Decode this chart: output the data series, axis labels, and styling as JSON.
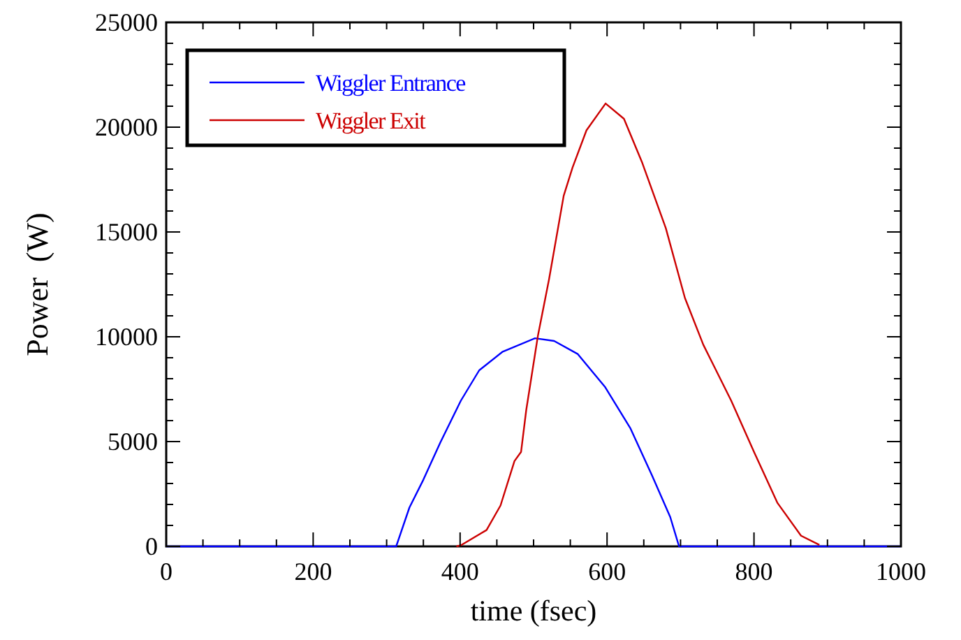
{
  "chart_data": {
    "type": "line",
    "xlabel": "time (fsec)",
    "ylabel": "Power  (W)",
    "xlim": [
      0,
      1000
    ],
    "ylim": [
      0,
      25000
    ],
    "xticks": [
      0,
      {
        "value": 50,
        "label": null
      },
      {
        "value": 100,
        "label": null
      },
      {
        "value": 150,
        "label": null
      },
      200,
      {
        "value": 250,
        "label": null
      },
      {
        "value": 300,
        "label": null
      },
      {
        "value": 350,
        "label": null
      },
      400,
      {
        "value": 450,
        "label": null
      },
      {
        "value": 500,
        "label": null
      },
      {
        "value": 550,
        "label": null
      },
      600,
      {
        "value": 650,
        "label": null
      },
      {
        "value": 700,
        "label": null
      },
      {
        "value": 750,
        "label": null
      },
      800,
      {
        "value": 850,
        "label": null
      },
      {
        "value": 900,
        "label": null
      },
      {
        "value": 950,
        "label": null
      },
      1000
    ],
    "yticks": [
      0,
      {
        "value": 1000,
        "label": null
      },
      {
        "value": 2000,
        "label": null
      },
      {
        "value": 3000,
        "label": null
      },
      {
        "value": 4000,
        "label": null
      },
      5000,
      {
        "value": 6000,
        "label": null
      },
      {
        "value": 7000,
        "label": null
      },
      {
        "value": 8000,
        "label": null
      },
      {
        "value": 9000,
        "label": null
      },
      10000,
      {
        "value": 11000,
        "label": null
      },
      {
        "value": 12000,
        "label": null
      },
      {
        "value": 13000,
        "label": null
      },
      {
        "value": 14000,
        "label": null
      },
      15000,
      {
        "value": 16000,
        "label": null
      },
      {
        "value": 17000,
        "label": null
      },
      {
        "value": 18000,
        "label": null
      },
      {
        "value": 19000,
        "label": null
      },
      20000,
      {
        "value": 21000,
        "label": null
      },
      {
        "value": 22000,
        "label": null
      },
      {
        "value": 23000,
        "label": null
      },
      {
        "value": 24000,
        "label": null
      },
      25000
    ],
    "grid": false,
    "legend": "top left",
    "series": [
      {
        "name": "Wiggler Entrance",
        "color": "#0000ff",
        "x": [
          0,
          313,
          331,
          350,
          373,
          401,
          426,
          458,
          502,
          528,
          560,
          597,
          632,
          661,
          686,
          698,
          1000
        ],
        "values": [
          0,
          0,
          1850,
          3180,
          4950,
          6950,
          8400,
          9290,
          9930,
          9800,
          9180,
          7620,
          5620,
          3400,
          1400,
          0,
          0
        ]
      },
      {
        "name": "Wiggler Exit",
        "color": "#cc0000",
        "x": [
          395,
          401,
          436,
          455,
          474,
          483,
          490,
          506,
          521,
          541,
          553,
          572,
          598,
          623,
          648,
          680,
          706,
          731,
          769,
          800,
          832,
          864,
          889
        ],
        "values": [
          0,
          50,
          780,
          1950,
          4070,
          4510,
          6500,
          10070,
          12730,
          16730,
          18070,
          19850,
          21130,
          20400,
          18290,
          15180,
          11850,
          9620,
          6950,
          4510,
          2070,
          510,
          70
        ]
      }
    ]
  }
}
